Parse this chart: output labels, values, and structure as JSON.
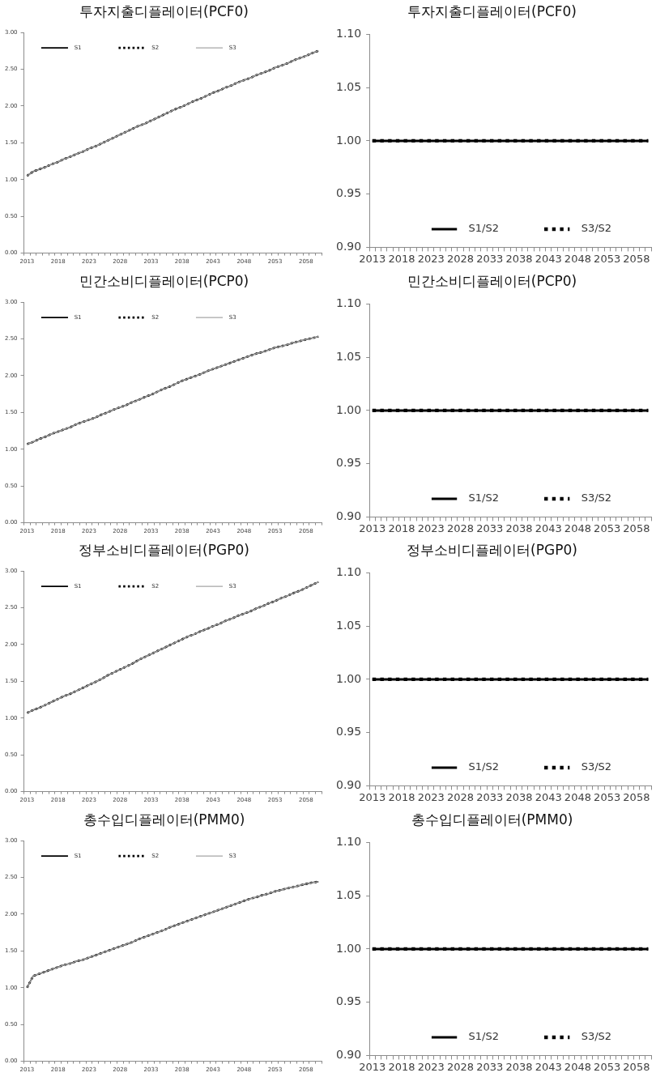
{
  "chart_data": [
    {
      "type": "line",
      "title": "투자지출디플레이터(PCF0)",
      "categories": [
        "2013",
        null,
        null,
        null,
        null,
        "2018",
        null,
        null,
        null,
        null,
        "2023",
        null,
        null,
        null,
        null,
        "2028",
        null,
        null,
        null,
        null,
        "2033",
        null,
        null,
        null,
        null,
        "2038",
        null,
        null,
        null,
        null,
        "2043",
        null,
        null,
        null,
        null,
        "2048",
        null,
        null,
        null,
        null,
        "2053",
        null,
        null,
        null,
        null,
        "2058",
        null,
        null
      ],
      "series": [
        {
          "name": "S1",
          "color": "#000000",
          "line_style": "solid",
          "values": [
            1.05,
            1.11,
            1.14,
            1.17,
            1.21,
            1.24,
            1.28,
            1.31,
            1.35,
            1.38,
            1.42,
            1.45,
            1.49,
            1.53,
            1.57,
            1.61,
            1.65,
            1.69,
            1.73,
            1.76,
            1.8,
            1.84,
            1.88,
            1.92,
            1.96,
            1.99,
            2.03,
            2.07,
            2.1,
            2.14,
            2.18,
            2.21,
            2.25,
            2.28,
            2.32,
            2.35,
            2.38,
            2.42,
            2.45,
            2.48,
            2.52,
            2.55,
            2.58,
            2.62,
            2.65,
            2.68,
            2.72,
            2.75
          ]
        },
        {
          "name": "S2",
          "color": "#000000",
          "line_style": "dotted",
          "values": [
            1.05,
            1.11,
            1.14,
            1.17,
            1.21,
            1.24,
            1.28,
            1.31,
            1.35,
            1.38,
            1.42,
            1.45,
            1.49,
            1.53,
            1.57,
            1.61,
            1.65,
            1.69,
            1.73,
            1.76,
            1.8,
            1.84,
            1.88,
            1.92,
            1.96,
            1.99,
            2.03,
            2.07,
            2.1,
            2.14,
            2.18,
            2.21,
            2.25,
            2.28,
            2.32,
            2.35,
            2.38,
            2.42,
            2.45,
            2.48,
            2.52,
            2.55,
            2.58,
            2.62,
            2.65,
            2.68,
            2.72,
            2.75
          ]
        },
        {
          "name": "S3",
          "color": "#a6a6a6",
          "line_style": "solid",
          "values": [
            1.05,
            1.11,
            1.14,
            1.17,
            1.21,
            1.24,
            1.28,
            1.31,
            1.35,
            1.38,
            1.42,
            1.45,
            1.49,
            1.53,
            1.57,
            1.61,
            1.65,
            1.69,
            1.73,
            1.76,
            1.8,
            1.84,
            1.88,
            1.92,
            1.96,
            1.99,
            2.03,
            2.07,
            2.1,
            2.14,
            2.18,
            2.21,
            2.25,
            2.28,
            2.32,
            2.35,
            2.38,
            2.42,
            2.45,
            2.48,
            2.52,
            2.55,
            2.58,
            2.62,
            2.65,
            2.68,
            2.72,
            2.75
          ]
        }
      ],
      "ylim": [
        0,
        3
      ],
      "yticks": [
        {
          "value": 0,
          "label": "0.00"
        },
        {
          "value": 0.5,
          "label": "0.50"
        },
        {
          "value": 1,
          "label": "1.00"
        },
        {
          "value": 1.5,
          "label": "1.50"
        },
        {
          "value": 2,
          "label": "2.00"
        },
        {
          "value": 2.5,
          "label": "2.50"
        },
        {
          "value": 3,
          "label": "3.00"
        }
      ],
      "legend": "top left"
    },
    {
      "type": "line",
      "title": "투자지출디플레이터(PCF0)",
      "categories": [
        "2013",
        null,
        null,
        null,
        null,
        "2018",
        null,
        null,
        null,
        null,
        "2023",
        null,
        null,
        null,
        null,
        "2028",
        null,
        null,
        null,
        null,
        "2033",
        null,
        null,
        null,
        null,
        "2038",
        null,
        null,
        null,
        null,
        "2043",
        null,
        null,
        null,
        null,
        "2048",
        null,
        null,
        null,
        null,
        "2053",
        null,
        null,
        null,
        null,
        "2058",
        null,
        null
      ],
      "series": [
        {
          "name": "S1/S2",
          "color": "#000000",
          "line_style": "solid",
          "values": [
            1,
            1,
            1,
            1,
            1,
            1,
            1,
            1,
            1,
            1,
            1,
            1,
            1,
            1,
            1,
            1,
            1,
            1,
            1,
            1,
            1,
            1,
            1,
            1,
            1,
            1,
            1,
            1,
            1,
            1,
            1,
            1,
            1,
            1,
            1,
            1,
            1,
            1,
            1,
            1,
            1,
            1,
            1,
            1,
            1,
            1,
            1,
            1
          ]
        },
        {
          "name": "S3/S2",
          "color": "#000000",
          "line_style": "dotted",
          "values": [
            1,
            1,
            1,
            1,
            1,
            1,
            1,
            1,
            1,
            1,
            1,
            1,
            1,
            1,
            1,
            1,
            1,
            1,
            1,
            1,
            1,
            1,
            1,
            1,
            1,
            1,
            1,
            1,
            1,
            1,
            1,
            1,
            1,
            1,
            1,
            1,
            1,
            1,
            1,
            1,
            1,
            1,
            1,
            1,
            1,
            1,
            1,
            1
          ]
        }
      ],
      "ylim": [
        0.9,
        1.1
      ],
      "yticks": [
        {
          "value": 0.9,
          "label": "0.90"
        },
        {
          "value": 0.95,
          "label": "0.95"
        },
        {
          "value": 1,
          "label": "1.00"
        },
        {
          "value": 1.05,
          "label": "1.05"
        },
        {
          "value": 1.1,
          "label": "1.10"
        }
      ],
      "legend": "bottom"
    },
    {
      "type": "line",
      "title": "민간소비디플레이터(PCP0)",
      "categories": [
        "2013",
        null,
        null,
        null,
        null,
        "2018",
        null,
        null,
        null,
        null,
        "2023",
        null,
        null,
        null,
        null,
        "2028",
        null,
        null,
        null,
        null,
        "2033",
        null,
        null,
        null,
        null,
        "2038",
        null,
        null,
        null,
        null,
        "2043",
        null,
        null,
        null,
        null,
        "2048",
        null,
        null,
        null,
        null,
        "2053",
        null,
        null,
        null,
        null,
        "2058",
        null,
        null
      ],
      "series": [
        {
          "name": "S1",
          "color": "#000000",
          "line_style": "solid",
          "values": [
            1.07,
            1.1,
            1.14,
            1.17,
            1.21,
            1.24,
            1.27,
            1.3,
            1.34,
            1.37,
            1.4,
            1.43,
            1.47,
            1.5,
            1.54,
            1.57,
            1.6,
            1.64,
            1.67,
            1.71,
            1.74,
            1.78,
            1.82,
            1.85,
            1.89,
            1.93,
            1.96,
            1.99,
            2.02,
            2.06,
            2.09,
            2.12,
            2.15,
            2.18,
            2.21,
            2.24,
            2.27,
            2.3,
            2.32,
            2.35,
            2.38,
            2.4,
            2.42,
            2.45,
            2.47,
            2.49,
            2.51,
            2.53
          ]
        },
        {
          "name": "S2",
          "color": "#000000",
          "line_style": "dotted",
          "values": [
            1.07,
            1.1,
            1.14,
            1.17,
            1.21,
            1.24,
            1.27,
            1.3,
            1.34,
            1.37,
            1.4,
            1.43,
            1.47,
            1.5,
            1.54,
            1.57,
            1.6,
            1.64,
            1.67,
            1.71,
            1.74,
            1.78,
            1.82,
            1.85,
            1.89,
            1.93,
            1.96,
            1.99,
            2.02,
            2.06,
            2.09,
            2.12,
            2.15,
            2.18,
            2.21,
            2.24,
            2.27,
            2.3,
            2.32,
            2.35,
            2.38,
            2.4,
            2.42,
            2.45,
            2.47,
            2.49,
            2.51,
            2.53
          ]
        },
        {
          "name": "S3",
          "color": "#a6a6a6",
          "line_style": "solid",
          "values": [
            1.07,
            1.1,
            1.14,
            1.17,
            1.21,
            1.24,
            1.27,
            1.3,
            1.34,
            1.37,
            1.4,
            1.43,
            1.47,
            1.5,
            1.54,
            1.57,
            1.6,
            1.64,
            1.67,
            1.71,
            1.74,
            1.78,
            1.82,
            1.85,
            1.89,
            1.93,
            1.96,
            1.99,
            2.02,
            2.06,
            2.09,
            2.12,
            2.15,
            2.18,
            2.21,
            2.24,
            2.27,
            2.3,
            2.32,
            2.35,
            2.38,
            2.4,
            2.42,
            2.45,
            2.47,
            2.49,
            2.51,
            2.53
          ]
        }
      ],
      "ylim": [
        0,
        3
      ],
      "yticks": [
        {
          "value": 0,
          "label": "0.00"
        },
        {
          "value": 0.5,
          "label": "0.50"
        },
        {
          "value": 1,
          "label": "1.00"
        },
        {
          "value": 1.5,
          "label": "1.50"
        },
        {
          "value": 2,
          "label": "2.00"
        },
        {
          "value": 2.5,
          "label": "2.50"
        },
        {
          "value": 3,
          "label": "3.00"
        }
      ],
      "legend": "top left"
    },
    {
      "type": "line",
      "title": "민간소비디플레이터(PCP0)",
      "categories": [
        "2013",
        null,
        null,
        null,
        null,
        "2018",
        null,
        null,
        null,
        null,
        "2023",
        null,
        null,
        null,
        null,
        "2028",
        null,
        null,
        null,
        null,
        "2033",
        null,
        null,
        null,
        null,
        "2038",
        null,
        null,
        null,
        null,
        "2043",
        null,
        null,
        null,
        null,
        "2048",
        null,
        null,
        null,
        null,
        "2053",
        null,
        null,
        null,
        null,
        "2058",
        null,
        null
      ],
      "series": [
        {
          "name": "S1/S2",
          "color": "#000000",
          "line_style": "solid",
          "values": [
            1,
            1,
            1,
            1,
            1,
            1,
            1,
            1,
            1,
            1,
            1,
            1,
            1,
            1,
            1,
            1,
            1,
            1,
            1,
            1,
            1,
            1,
            1,
            1,
            1,
            1,
            1,
            1,
            1,
            1,
            1,
            1,
            1,
            1,
            1,
            1,
            1,
            1,
            1,
            1,
            1,
            1,
            1,
            1,
            1,
            1,
            1,
            1
          ]
        },
        {
          "name": "S3/S2",
          "color": "#000000",
          "line_style": "dotted",
          "values": [
            1,
            1,
            1,
            1,
            1,
            1,
            1,
            1,
            1,
            1,
            1,
            1,
            1,
            1,
            1,
            1,
            1,
            1,
            1,
            1,
            1,
            1,
            1,
            1,
            1,
            1,
            1,
            1,
            1,
            1,
            1,
            1,
            1,
            1,
            1,
            1,
            1,
            1,
            1,
            1,
            1,
            1,
            1,
            1,
            1,
            1,
            1,
            1
          ]
        }
      ],
      "ylim": [
        0.9,
        1.1
      ],
      "yticks": [
        {
          "value": 0.9,
          "label": "0.90"
        },
        {
          "value": 0.95,
          "label": "0.95"
        },
        {
          "value": 1,
          "label": "1.00"
        },
        {
          "value": 1.05,
          "label": "1.05"
        },
        {
          "value": 1.1,
          "label": "1.10"
        }
      ],
      "legend": "bottom"
    },
    {
      "type": "line",
      "title": "정부소비디플레이터(PGP0)",
      "categories": [
        "2013",
        null,
        null,
        null,
        null,
        "2018",
        null,
        null,
        null,
        null,
        "2023",
        null,
        null,
        null,
        null,
        "2028",
        null,
        null,
        null,
        null,
        "2033",
        null,
        null,
        null,
        null,
        "2038",
        null,
        null,
        null,
        null,
        "2043",
        null,
        null,
        null,
        null,
        "2048",
        null,
        null,
        null,
        null,
        "2053",
        null,
        null,
        null,
        null,
        "2058",
        null,
        null
      ],
      "series": [
        {
          "name": "S1",
          "color": "#000000",
          "line_style": "solid",
          "values": [
            1.07,
            1.11,
            1.14,
            1.18,
            1.22,
            1.26,
            1.3,
            1.33,
            1.37,
            1.41,
            1.45,
            1.49,
            1.53,
            1.58,
            1.62,
            1.66,
            1.7,
            1.74,
            1.79,
            1.83,
            1.87,
            1.91,
            1.95,
            1.99,
            2.03,
            2.07,
            2.11,
            2.14,
            2.18,
            2.21,
            2.25,
            2.28,
            2.32,
            2.35,
            2.39,
            2.42,
            2.45,
            2.49,
            2.52,
            2.56,
            2.59,
            2.63,
            2.66,
            2.7,
            2.73,
            2.77,
            2.81,
            2.85
          ]
        },
        {
          "name": "S2",
          "color": "#000000",
          "line_style": "dotted",
          "values": [
            1.07,
            1.11,
            1.14,
            1.18,
            1.22,
            1.26,
            1.3,
            1.33,
            1.37,
            1.41,
            1.45,
            1.49,
            1.53,
            1.58,
            1.62,
            1.66,
            1.7,
            1.74,
            1.79,
            1.83,
            1.87,
            1.91,
            1.95,
            1.99,
            2.03,
            2.07,
            2.11,
            2.14,
            2.18,
            2.21,
            2.25,
            2.28,
            2.32,
            2.35,
            2.39,
            2.42,
            2.45,
            2.49,
            2.52,
            2.56,
            2.59,
            2.63,
            2.66,
            2.7,
            2.73,
            2.77,
            2.81,
            2.85
          ]
        },
        {
          "name": "S3",
          "color": "#a6a6a6",
          "line_style": "solid",
          "values": [
            1.07,
            1.11,
            1.14,
            1.18,
            1.22,
            1.26,
            1.3,
            1.33,
            1.37,
            1.41,
            1.45,
            1.49,
            1.53,
            1.58,
            1.62,
            1.66,
            1.7,
            1.74,
            1.79,
            1.83,
            1.87,
            1.91,
            1.95,
            1.99,
            2.03,
            2.07,
            2.11,
            2.14,
            2.18,
            2.21,
            2.25,
            2.28,
            2.32,
            2.35,
            2.39,
            2.42,
            2.45,
            2.49,
            2.52,
            2.56,
            2.59,
            2.63,
            2.66,
            2.7,
            2.73,
            2.77,
            2.81,
            2.85
          ]
        }
      ],
      "ylim": [
        0,
        3
      ],
      "yticks": [
        {
          "value": 0,
          "label": "0.00"
        },
        {
          "value": 0.5,
          "label": "0.50"
        },
        {
          "value": 1,
          "label": "1.00"
        },
        {
          "value": 1.5,
          "label": "1.50"
        },
        {
          "value": 2,
          "label": "2.00"
        },
        {
          "value": 2.5,
          "label": "2.50"
        },
        {
          "value": 3,
          "label": "3.00"
        }
      ],
      "legend": "top left"
    },
    {
      "type": "line",
      "title": "정부소비디플레이터(PGP0)",
      "categories": [
        "2013",
        null,
        null,
        null,
        null,
        "2018",
        null,
        null,
        null,
        null,
        "2023",
        null,
        null,
        null,
        null,
        "2028",
        null,
        null,
        null,
        null,
        "2033",
        null,
        null,
        null,
        null,
        "2038",
        null,
        null,
        null,
        null,
        "2043",
        null,
        null,
        null,
        null,
        "2048",
        null,
        null,
        null,
        null,
        "2053",
        null,
        null,
        null,
        null,
        "2058",
        null,
        null
      ],
      "series": [
        {
          "name": "S1/S2",
          "color": "#000000",
          "line_style": "solid",
          "values": [
            1,
            1,
            1,
            1,
            1,
            1,
            1,
            1,
            1,
            1,
            1,
            1,
            1,
            1,
            1,
            1,
            1,
            1,
            1,
            1,
            1,
            1,
            1,
            1,
            1,
            1,
            1,
            1,
            1,
            1,
            1,
            1,
            1,
            1,
            1,
            1,
            1,
            1,
            1,
            1,
            1,
            1,
            1,
            1,
            1,
            1,
            1,
            1
          ]
        },
        {
          "name": "S3/S2",
          "color": "#000000",
          "line_style": "dotted",
          "values": [
            1,
            1,
            1,
            1,
            1,
            1,
            1,
            1,
            1,
            1,
            1,
            1,
            1,
            1,
            1,
            1,
            1,
            1,
            1,
            1,
            1,
            1,
            1,
            1,
            1,
            1,
            1,
            1,
            1,
            1,
            1,
            1,
            1,
            1,
            1,
            1,
            1,
            1,
            1,
            1,
            1,
            1,
            1,
            1,
            1,
            1,
            1,
            1
          ]
        }
      ],
      "ylim": [
        0.9,
        1.1
      ],
      "yticks": [
        {
          "value": 0.9,
          "label": "0.90"
        },
        {
          "value": 0.95,
          "label": "0.95"
        },
        {
          "value": 1,
          "label": "1.00"
        },
        {
          "value": 1.05,
          "label": "1.05"
        },
        {
          "value": 1.1,
          "label": "1.10"
        }
      ],
      "legend": "bottom"
    },
    {
      "type": "line",
      "title": "총수입디플레이터(PMM0)",
      "categories": [
        "2013",
        null,
        null,
        null,
        null,
        "2018",
        null,
        null,
        null,
        null,
        "2023",
        null,
        null,
        null,
        null,
        "2028",
        null,
        null,
        null,
        null,
        "2033",
        null,
        null,
        null,
        null,
        "2038",
        null,
        null,
        null,
        null,
        "2043",
        null,
        null,
        null,
        null,
        "2048",
        null,
        null,
        null,
        null,
        "2053",
        null,
        null,
        null,
        null,
        "2058",
        null,
        null
      ],
      "series": [
        {
          "name": "S1",
          "color": "#000000",
          "line_style": "solid",
          "values": [
            1.0,
            1.16,
            1.19,
            1.22,
            1.25,
            1.28,
            1.31,
            1.33,
            1.36,
            1.38,
            1.41,
            1.44,
            1.47,
            1.5,
            1.53,
            1.56,
            1.59,
            1.62,
            1.66,
            1.69,
            1.72,
            1.75,
            1.78,
            1.82,
            1.85,
            1.88,
            1.91,
            1.94,
            1.97,
            2.0,
            2.03,
            2.06,
            2.09,
            2.12,
            2.15,
            2.18,
            2.21,
            2.23,
            2.26,
            2.28,
            2.31,
            2.33,
            2.35,
            2.37,
            2.39,
            2.41,
            2.43,
            2.44
          ]
        },
        {
          "name": "S2",
          "color": "#000000",
          "line_style": "dotted",
          "values": [
            1.0,
            1.16,
            1.19,
            1.22,
            1.25,
            1.28,
            1.31,
            1.33,
            1.36,
            1.38,
            1.41,
            1.44,
            1.47,
            1.5,
            1.53,
            1.56,
            1.59,
            1.62,
            1.66,
            1.69,
            1.72,
            1.75,
            1.78,
            1.82,
            1.85,
            1.88,
            1.91,
            1.94,
            1.97,
            2.0,
            2.03,
            2.06,
            2.09,
            2.12,
            2.15,
            2.18,
            2.21,
            2.23,
            2.26,
            2.28,
            2.31,
            2.33,
            2.35,
            2.37,
            2.39,
            2.41,
            2.43,
            2.44
          ]
        },
        {
          "name": "S3",
          "color": "#a6a6a6",
          "line_style": "solid",
          "values": [
            1.0,
            1.16,
            1.19,
            1.22,
            1.25,
            1.28,
            1.31,
            1.33,
            1.36,
            1.38,
            1.41,
            1.44,
            1.47,
            1.5,
            1.53,
            1.56,
            1.59,
            1.62,
            1.66,
            1.69,
            1.72,
            1.75,
            1.78,
            1.82,
            1.85,
            1.88,
            1.91,
            1.94,
            1.97,
            2.0,
            2.03,
            2.06,
            2.09,
            2.12,
            2.15,
            2.18,
            2.21,
            2.23,
            2.26,
            2.28,
            2.31,
            2.33,
            2.35,
            2.37,
            2.39,
            2.41,
            2.43,
            2.44
          ]
        }
      ],
      "ylim": [
        0,
        3
      ],
      "yticks": [
        {
          "value": 0,
          "label": "0.00"
        },
        {
          "value": 0.5,
          "label": "0.50"
        },
        {
          "value": 1,
          "label": "1.00"
        },
        {
          "value": 1.5,
          "label": "1.50"
        },
        {
          "value": 2,
          "label": "2.00"
        },
        {
          "value": 2.5,
          "label": "2.50"
        },
        {
          "value": 3,
          "label": "3.00"
        }
      ],
      "legend": "top left"
    },
    {
      "type": "line",
      "title": "총수입디플레이터(PMM0)",
      "categories": [
        "2013",
        null,
        null,
        null,
        null,
        "2018",
        null,
        null,
        null,
        null,
        "2023",
        null,
        null,
        null,
        null,
        "2028",
        null,
        null,
        null,
        null,
        "2033",
        null,
        null,
        null,
        null,
        "2038",
        null,
        null,
        null,
        null,
        "2043",
        null,
        null,
        null,
        null,
        "2048",
        null,
        null,
        null,
        null,
        "2053",
        null,
        null,
        null,
        null,
        "2058",
        null,
        null
      ],
      "series": [
        {
          "name": "S1/S2",
          "color": "#000000",
          "line_style": "solid",
          "values": [
            1,
            1,
            1,
            1,
            1,
            1,
            1,
            1,
            1,
            1,
            1,
            1,
            1,
            1,
            1,
            1,
            1,
            1,
            1,
            1,
            1,
            1,
            1,
            1,
            1,
            1,
            1,
            1,
            1,
            1,
            1,
            1,
            1,
            1,
            1,
            1,
            1,
            1,
            1,
            1,
            1,
            1,
            1,
            1,
            1,
            1,
            1,
            1
          ]
        },
        {
          "name": "S3/S2",
          "color": "#000000",
          "line_style": "dotted",
          "values": [
            1,
            1,
            1,
            1,
            1,
            1,
            1,
            1,
            1,
            1,
            1,
            1,
            1,
            1,
            1,
            1,
            1,
            1,
            1,
            1,
            1,
            1,
            1,
            1,
            1,
            1,
            1,
            1,
            1,
            1,
            1,
            1,
            1,
            1,
            1,
            1,
            1,
            1,
            1,
            1,
            1,
            1,
            1,
            1,
            1,
            1,
            1,
            1
          ]
        }
      ],
      "ylim": [
        0.9,
        1.1
      ],
      "yticks": [
        {
          "value": 0.9,
          "label": "0.90"
        },
        {
          "value": 0.95,
          "label": "0.95"
        },
        {
          "value": 1,
          "label": "1.00"
        },
        {
          "value": 1.05,
          "label": "1.05"
        },
        {
          "value": 1.1,
          "label": "1.10"
        }
      ],
      "legend": "bottom"
    }
  ]
}
